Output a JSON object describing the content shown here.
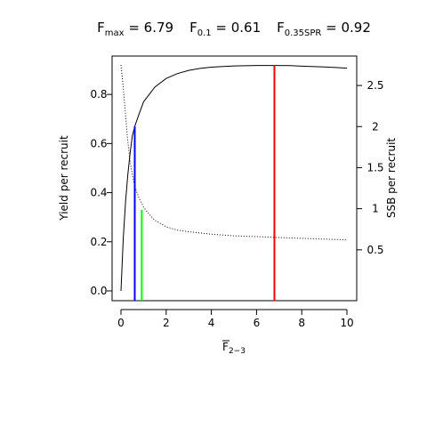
{
  "chart_data": {
    "type": "line",
    "title_parts": [
      {
        "main": "F",
        "sub": "max",
        "rest": " = 6.79"
      },
      {
        "main": "F",
        "sub": "0.1",
        "rest": " = 0.61"
      },
      {
        "main": "F",
        "sub": "0.35SPR",
        "rest": " = 0.92"
      }
    ],
    "xlabel": {
      "main": "F",
      "sub": "2−3",
      "overline": true
    },
    "ylabel": "Yield per recruit",
    "y2label": "SSB per recruit",
    "xlim": [
      0,
      10
    ],
    "ylim": [
      0,
      0.92
    ],
    "y2lim": [
      0,
      2.75
    ],
    "xticks": [
      0,
      2,
      4,
      6,
      8,
      10
    ],
    "yticks": [
      0.0,
      0.2,
      0.4,
      0.6,
      0.8
    ],
    "y2ticks": [
      0.5,
      1,
      1.5,
      2,
      2.5
    ],
    "series": [
      {
        "style": "solid",
        "axis": "left",
        "color": "#000000",
        "x": [
          0,
          0.1,
          0.2,
          0.3,
          0.4,
          0.5,
          0.61,
          0.8,
          1,
          1.25,
          1.5,
          2,
          2.5,
          3,
          3.5,
          4,
          5,
          6,
          6.79,
          7.5,
          8,
          9,
          10
        ],
        "y": [
          0.0,
          0.21,
          0.36,
          0.47,
          0.56,
          0.63,
          0.67,
          0.72,
          0.77,
          0.8,
          0.83,
          0.865,
          0.885,
          0.898,
          0.906,
          0.911,
          0.916,
          0.918,
          0.918,
          0.917,
          0.915,
          0.912,
          0.907
        ]
      },
      {
        "style": "dotted",
        "axis": "right",
        "color": "#000000",
        "x": [
          0,
          0.1,
          0.2,
          0.3,
          0.4,
          0.5,
          0.61,
          0.8,
          1,
          1.25,
          1.5,
          2,
          2.5,
          3,
          4,
          5,
          6,
          7,
          8,
          9,
          10
        ],
        "y": [
          2.75,
          2.48,
          2.15,
          1.83,
          1.58,
          1.42,
          1.27,
          1.13,
          1.02,
          0.93,
          0.86,
          0.78,
          0.74,
          0.72,
          0.69,
          0.67,
          0.66,
          0.65,
          0.64,
          0.63,
          0.62
        ]
      }
    ],
    "reference_lines": [
      {
        "x": 0.61,
        "y_top": 0.67,
        "color": "#0000ff"
      },
      {
        "x": 0.92,
        "y_top": 0.33,
        "color": "#00ff00"
      },
      {
        "x": 6.79,
        "y_top": 0.918,
        "color": "#ff0000"
      }
    ]
  }
}
